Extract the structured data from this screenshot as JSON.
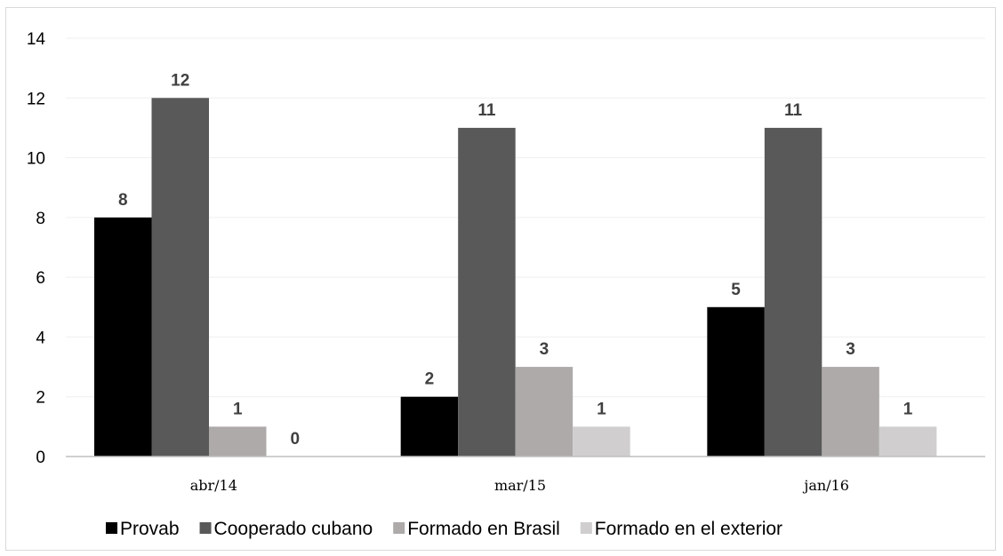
{
  "chart_data": {
    "type": "bar",
    "categories": [
      "abr/14",
      "mar/15",
      "jan/16"
    ],
    "series": [
      {
        "name": "Provab",
        "values": [
          8,
          2,
          5
        ],
        "color": "#000000"
      },
      {
        "name": "Cooperado cubano",
        "values": [
          12,
          11,
          11
        ],
        "color": "#595959"
      },
      {
        "name": "Formado en Brasil",
        "values": [
          1,
          3,
          3
        ],
        "color": "#aeaaaa"
      },
      {
        "name": "Formado en el exterior",
        "values": [
          0,
          1,
          1
        ],
        "color": "#d0cece"
      }
    ],
    "ylim": [
      0,
      14
    ],
    "yticks": [
      0,
      2,
      4,
      6,
      8,
      10,
      12,
      14
    ],
    "grid": true,
    "legend": "bottom",
    "data_labels": true
  }
}
